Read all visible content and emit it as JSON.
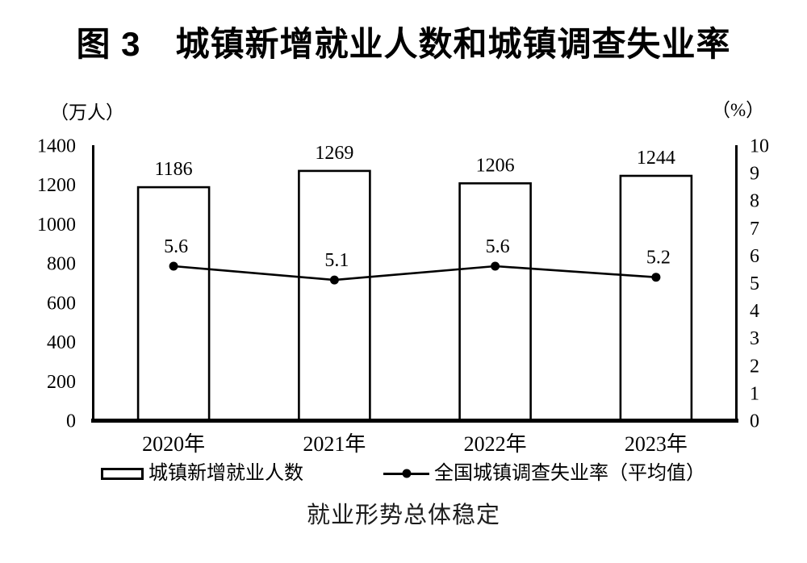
{
  "page": {
    "title": "图 3　城镇新增就业人数和城镇调查失业率",
    "caption": "就业形势总体稳定"
  },
  "chart_data": {
    "type": "bar+line combo",
    "title": "图 3　城镇新增就业人数和城镇调查失业率",
    "subtitle_caption": "就业形势总体稳定",
    "categories": [
      "2020年",
      "2021年",
      "2022年",
      "2023年"
    ],
    "series": [
      {
        "name": "城镇新增就业人数",
        "type": "bar",
        "axis": "left",
        "values": [
          1186,
          1269,
          1206,
          1244
        ],
        "bar_fill": "#ffffff",
        "bar_stroke": "#000000"
      },
      {
        "name": "全国城镇调查失业率（平均值）",
        "type": "line",
        "axis": "right",
        "values": [
          5.6,
          5.1,
          5.6,
          5.2
        ],
        "line_color": "#000000",
        "marker": "filled-circle"
      }
    ],
    "axes": {
      "left": {
        "unit_label": "（万人）",
        "min": 0,
        "max": 1400,
        "step": 200
      },
      "right": {
        "unit_label": "（%）",
        "min": 0,
        "max": 10,
        "step": 1
      }
    },
    "legend": [
      {
        "swatch": "bar-outline",
        "label": "城镇新增就业人数"
      },
      {
        "swatch": "line-dot",
        "label": "全国城镇调查失业率（平均值）"
      }
    ],
    "grid": false,
    "legend_position": "bottom",
    "data_labels_shown": true,
    "colors": {
      "ink": "#000000",
      "background": "#ffffff"
    }
  }
}
